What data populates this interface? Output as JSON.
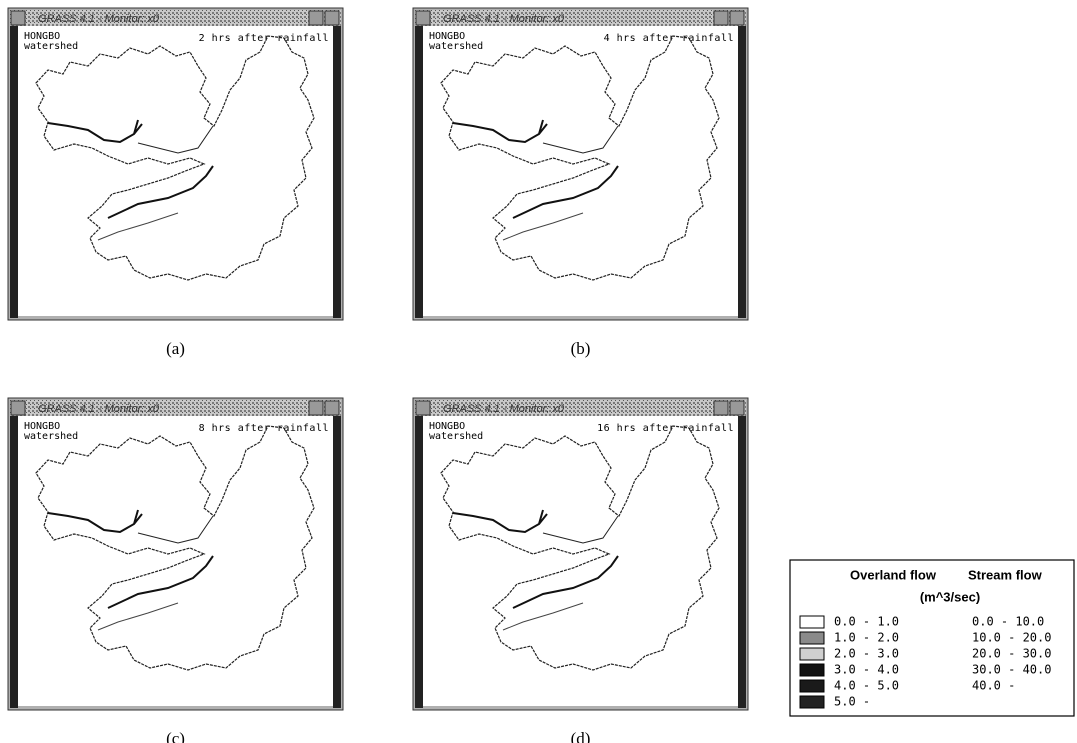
{
  "panels": [
    {
      "window_title": "GRASS 4.1 - Monitor: x0",
      "map_label": [
        "HONGBO",
        "watershed"
      ],
      "time_label": "2 hrs after rainfall",
      "caption": "(a)"
    },
    {
      "window_title": "GRASS 4.1 - Monitor: x0",
      "map_label": [
        "HONGBO",
        "watershed"
      ],
      "time_label": "4 hrs after rainfall",
      "caption": "(b)"
    },
    {
      "window_title": "GRASS 4.1 - Monitor: x0",
      "map_label": [
        "HONGBO",
        "watershed"
      ],
      "time_label": "8 hrs after rainfall",
      "caption": "(c)"
    },
    {
      "window_title": "GRASS 4.1 - Monitor: x0",
      "map_label": [
        "HONGBO",
        "watershed"
      ],
      "time_label": "16 hrs after rainfall",
      "caption": "(d)"
    }
  ],
  "legend": {
    "overland_header": "Overland flow",
    "stream_header": "Stream flow",
    "unit": "(m^3/sec)",
    "rows": [
      {
        "color": "#ffffff",
        "overland": "0.0 - 1.0",
        "stream": "0.0 - 10.0"
      },
      {
        "color": "#8a8a8a",
        "overland": "1.0 - 2.0",
        "stream": "10.0 - 20.0"
      },
      {
        "color": "#d0d0d0",
        "overland": "2.0 - 3.0",
        "stream": "20.0 - 30.0"
      },
      {
        "color": "#111111",
        "overland": "3.0 - 4.0",
        "stream": "30.0 - 40.0"
      },
      {
        "color": "#1a1a1a",
        "overland": "4.0 - 5.0",
        "stream": "40.0 -"
      },
      {
        "color": "#222222",
        "overland": "5.0 -"
      }
    ]
  }
}
